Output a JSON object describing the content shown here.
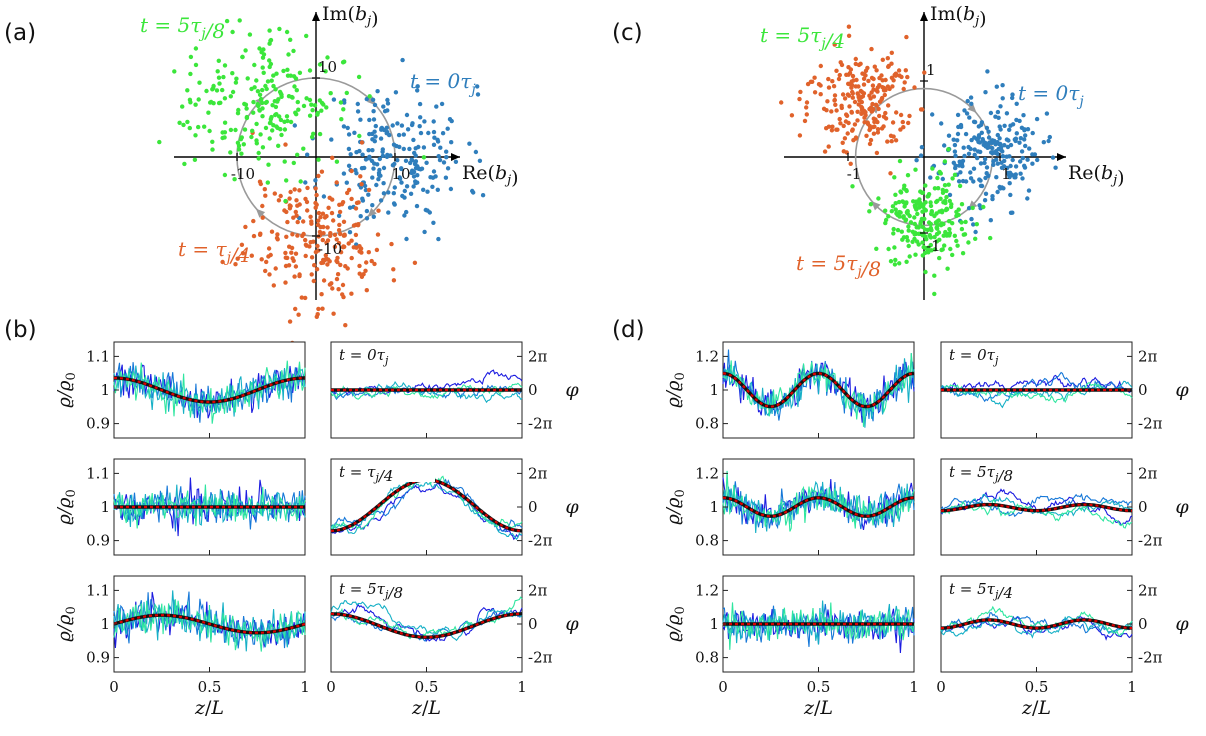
{
  "panel_labels": [
    "(a)",
    "(b)",
    "(c)",
    "(d)"
  ],
  "colors": {
    "blue": "#2f7ebc",
    "orange": "#e0622b",
    "green": "#3be63b",
    "circle": "#9a9a9a",
    "mean": "#111111",
    "theory": "#e00000",
    "realizations": [
      "#1c1ce0",
      "#1678d8",
      "#16b0c6",
      "#2fe6a0"
    ]
  },
  "chart_data": [
    {
      "id": "a",
      "type": "scatter",
      "xlabel": "Re(b_j)",
      "ylabel": "Im(b_j)",
      "xticks": [
        -10,
        10
      ],
      "yticks": [
        10,
        -10
      ],
      "xlim": [
        -19,
        19
      ],
      "ylim": [
        -19,
        19
      ],
      "circle_radius": 10,
      "series": [
        {
          "name": "t = 0τ_j",
          "color": "blue",
          "center": [
            10,
            0
          ],
          "spread": 4.5
        },
        {
          "name": "t = τ_j/4",
          "color": "orange",
          "center": [
            0,
            -10
          ],
          "spread": 4.5
        },
        {
          "name": "t = 5τ_j/8",
          "color": "green",
          "center": [
            -7.1,
            7.1
          ],
          "spread": 4.5
        }
      ]
    },
    {
      "id": "c",
      "type": "scatter",
      "xlabel": "Re(b_j)",
      "ylabel": "Im(b_j)",
      "xticks": [
        -1,
        1
      ],
      "yticks": [
        1,
        -1
      ],
      "xlim": [
        -1.85,
        1.85
      ],
      "ylim": [
        -1.85,
        1.85
      ],
      "circle_radius": 0.9,
      "series": [
        {
          "name": "t = 0τ_j",
          "color": "blue",
          "center": [
            0.85,
            0.05
          ],
          "spread": 0.35
        },
        {
          "name": "t = 5τ_j/8",
          "color": "orange",
          "center": [
            -0.85,
            0.75
          ],
          "spread": 0.35
        },
        {
          "name": "t = 5τ_j/4",
          "color": "green",
          "center": [
            0.0,
            -0.85
          ],
          "spread": 0.3
        }
      ]
    },
    {
      "id": "b",
      "type": "line",
      "xlabel": "z/L",
      "ylabel_left": "ϱ/ϱ0",
      "ylabel_right": "φ",
      "xticks": [
        "0",
        "0.5",
        "1"
      ],
      "rho_ticks": [
        "1.1",
        "1",
        "0.9"
      ],
      "rho_lim": [
        0.88,
        1.12
      ],
      "phi_ticks": [
        "2π",
        "0",
        "-2π"
      ],
      "phi_lim": [
        -9.42,
        9.42
      ],
      "rows": [
        {
          "label": "t = 0τ_j",
          "rho_mean": {
            "amp": 0.03,
            "k": 2,
            "phase": "cos"
          },
          "phi_mean": {
            "amp": 0,
            "k": 2
          }
        },
        {
          "label": "t = τ_j/4",
          "rho_mean": {
            "amp": 0,
            "k": 2
          },
          "phi_mean": {
            "amp": 5.0,
            "k": 2,
            "offset": 1.6
          }
        },
        {
          "label": "t = 5τ_j/8",
          "rho_mean": {
            "amp": -0.022,
            "k": 2,
            "phase": "sin"
          },
          "phi_mean": {
            "amp": -2.3,
            "k": 2,
            "offset": -1.5
          }
        }
      ]
    },
    {
      "id": "d",
      "type": "line",
      "xlabel": "z/L",
      "ylabel_left": "ϱ/ϱ0",
      "ylabel_right": "φ",
      "xticks": [
        "0",
        "0.5",
        "1"
      ],
      "rho_ticks": [
        "1.2",
        "1",
        "0.8"
      ],
      "rho_lim": [
        0.74,
        1.26
      ],
      "phi_ticks": [
        "2π",
        "0",
        "-2π"
      ],
      "phi_lim": [
        -9.42,
        9.42
      ],
      "rows": [
        {
          "label": "t = 0τ_j",
          "rho_mean": {
            "amp": 0.09,
            "k": 4,
            "phase": "cos"
          },
          "phi_mean": {
            "amp": 0,
            "k": 4
          }
        },
        {
          "label": "t = 5τ_j/8",
          "rho_mean": {
            "amp": 0.05,
            "k": 4,
            "phase": "cos"
          },
          "phi_mean": {
            "amp": 0.6,
            "k": 4,
            "offset": -0.6
          }
        },
        {
          "label": "t = 5τ_j/4",
          "rho_mean": {
            "amp": 0,
            "k": 4
          },
          "phi_mean": {
            "amp": 0.8,
            "k": 4,
            "offset": 0
          }
        }
      ]
    }
  ]
}
